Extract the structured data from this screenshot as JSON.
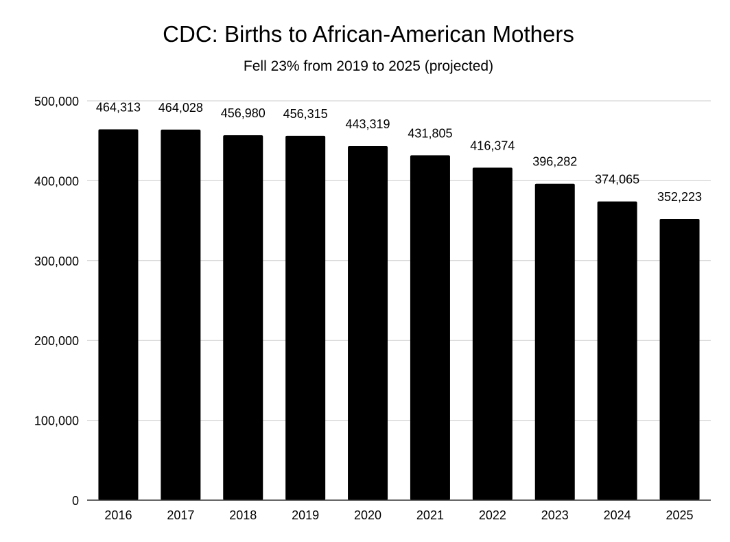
{
  "chart_data": {
    "type": "bar",
    "title": "CDC: Births to African-American Mothers",
    "subtitle": "Fell 23% from 2019 to 2025 (projected)",
    "xlabel": "",
    "ylabel": "",
    "categories": [
      "2016",
      "2017",
      "2018",
      "2019",
      "2020",
      "2021",
      "2022",
      "2023",
      "2024",
      "2025"
    ],
    "values": [
      464313,
      464028,
      456980,
      456315,
      443319,
      431805,
      416374,
      396282,
      374065,
      352223
    ],
    "data_labels": [
      "464,313",
      "464,028",
      "456,980",
      "456,315",
      "443,319",
      "431,805",
      "416,374",
      "396,282",
      "374,065",
      "352,223"
    ],
    "y_ticks": [
      0,
      100000,
      200000,
      300000,
      400000,
      500000
    ],
    "y_tick_labels": [
      "0",
      "100,000",
      "200,000",
      "300,000",
      "400,000",
      "500,000"
    ],
    "ylim": [
      0,
      500000
    ],
    "grid": true,
    "legend": "none",
    "colors": {
      "bar": "#000000",
      "grid": "#cccccc",
      "axis": "#333333",
      "text": "#000000"
    }
  }
}
